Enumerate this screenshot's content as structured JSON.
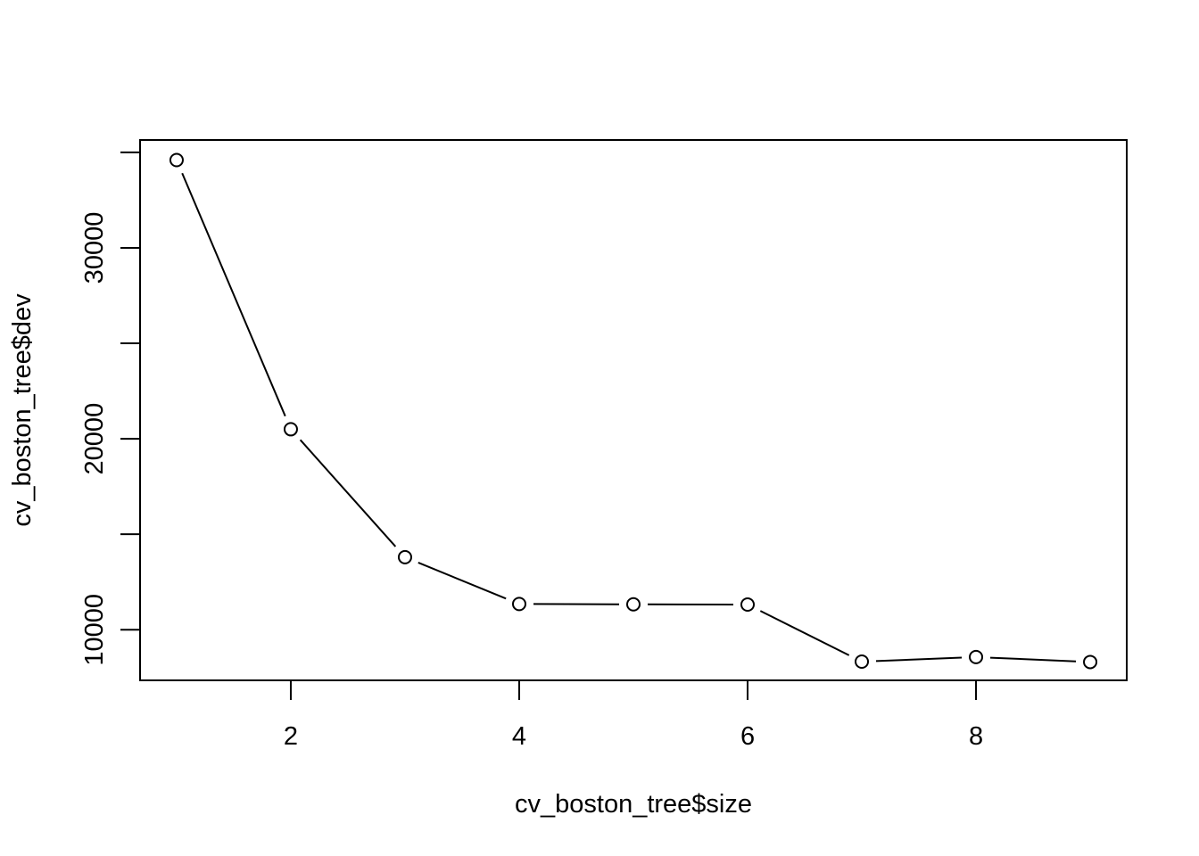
{
  "chart_data": {
    "type": "line",
    "title": "",
    "xlabel": "cv_boston_tree$size",
    "ylabel": "cv_boston_tree$dev",
    "x": [
      1,
      2,
      3,
      4,
      5,
      6,
      7,
      8,
      9
    ],
    "series": [
      {
        "values": [
          34600,
          20500,
          13800,
          11350,
          11330,
          11320,
          8330,
          8570,
          8310
        ],
        "marker": "open-circle",
        "line": "solid",
        "color": "#000000"
      }
    ],
    "xlim": [
      0.68,
      9.32
    ],
    "ylim": [
      7350,
      35650
    ],
    "xticks": [
      2,
      4,
      6,
      8
    ],
    "xtick_labels": [
      "2",
      "4",
      "6",
      "8"
    ],
    "yticks": [
      10000,
      15000,
      20000,
      25000,
      30000,
      35000
    ],
    "ytick_labels": [
      "10000",
      "",
      "20000",
      "",
      "30000",
      ""
    ],
    "grid": false,
    "legend": "none",
    "box": true
  }
}
